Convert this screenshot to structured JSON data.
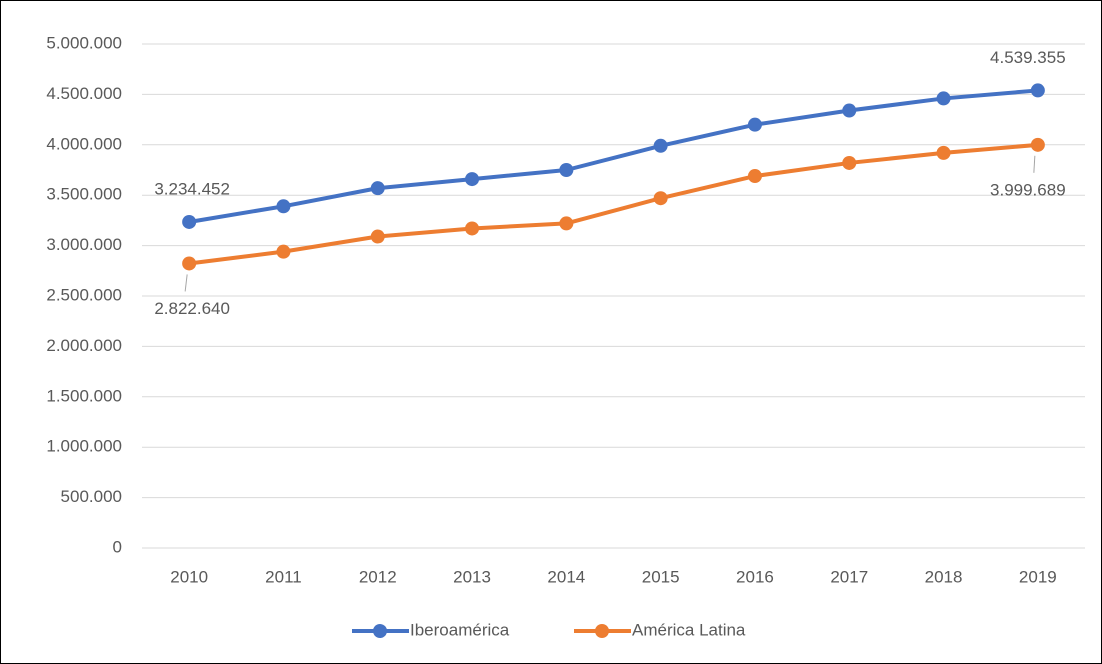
{
  "chart_data": {
    "type": "line",
    "categories": [
      "2010",
      "2011",
      "2012",
      "2013",
      "2014",
      "2015",
      "2016",
      "2017",
      "2018",
      "2019"
    ],
    "series": [
      {
        "name": "Iberoamérica",
        "color": "#4472c4",
        "values": [
          3234452,
          3390000,
          3570000,
          3660000,
          3750000,
          3990000,
          4200000,
          4340000,
          4460000,
          4539355
        ],
        "value_labels": [
          "3.234.452",
          null,
          null,
          null,
          null,
          null,
          null,
          null,
          null,
          "4.539.355"
        ]
      },
      {
        "name": "América Latina",
        "color": "#ed7d31",
        "values": [
          2822640,
          2940000,
          3090000,
          3170000,
          3220000,
          3470000,
          3690000,
          3820000,
          3920000,
          3999689
        ],
        "value_labels": [
          "2.822.640",
          null,
          null,
          null,
          null,
          null,
          null,
          null,
          null,
          "3.999.689"
        ]
      }
    ],
    "ylim": [
      0,
      5000000
    ],
    "yticks": [
      0,
      {
        "value": 500000,
        "label": "500.000"
      },
      {
        "value": 1000000,
        "label": "1.000.000"
      },
      {
        "value": 1500000,
        "label": "1.500.000"
      },
      {
        "value": 2000000,
        "label": "2.000.000"
      },
      {
        "value": 2500000,
        "label": "2.500.000"
      },
      {
        "value": 3000000,
        "label": "3.000.000"
      },
      {
        "value": 3500000,
        "label": "3.500.000"
      },
      {
        "value": 4000000,
        "label": "4.000.000"
      },
      {
        "value": 4500000,
        "label": "4.500.000"
      },
      {
        "value": 5000000,
        "label": "5.000.000"
      }
    ],
    "grid": true,
    "legend": "bottom"
  }
}
